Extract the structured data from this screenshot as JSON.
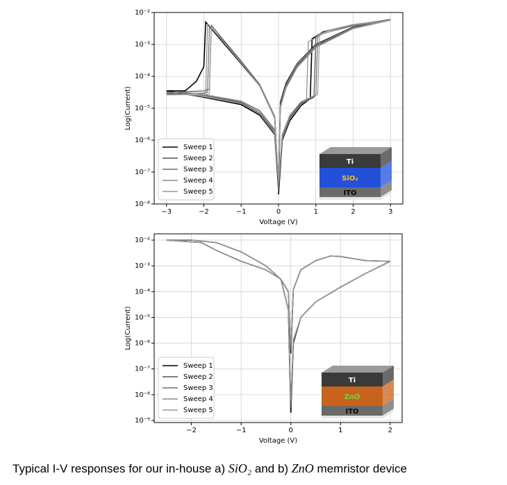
{
  "charts": [
    {
      "chart_data": {
        "type": "line",
        "x_label": "Voltage (V)",
        "y_label": "Log(Current)",
        "y_log": true,
        "grid": true,
        "legend": "lower left",
        "xlim": [
          -3.33,
          3.33
        ],
        "xticks": [
          {
            "value": -3,
            "label": "−3"
          },
          {
            "value": -2,
            "label": "−2"
          },
          {
            "value": -1,
            "label": "−1"
          },
          0,
          1,
          2,
          3
        ],
        "ylim": [
          1e-08,
          0.01
        ],
        "yticks": [
          {
            "value": 1e-08,
            "label": "10⁻⁸"
          },
          {
            "value": 1e-07,
            "label": "10⁻⁷"
          },
          {
            "value": 1e-06,
            "label": "10⁻⁶"
          },
          {
            "value": 1e-05,
            "label": "10⁻⁵"
          },
          {
            "value": 0.0001,
            "label": "10⁻⁴"
          },
          {
            "value": 0.001,
            "label": "10⁻³"
          },
          {
            "value": 0.01,
            "label": "10⁻²"
          }
        ],
        "series": [
          {
            "name": "Sweep 1",
            "color": "#000000",
            "x": [
              0,
              0.1,
              0.3,
              0.6,
              0.85,
              0.9,
              1.2,
              2,
              3,
              2,
              1,
              0.5,
              0.2,
              0.05,
              0,
              -0.1,
              -0.5,
              -1,
              -2,
              -3,
              -2.5,
              -2.2,
              -2,
              -1.95,
              -1.5,
              -1,
              -0.5,
              -0.1,
              0
            ],
            "values": [
              2e-08,
              1e-06,
              4e-06,
              1.2e-05,
              2e-05,
              0.0015,
              0.0025,
              0.004,
              0.006,
              0.0035,
              0.001,
              0.00025,
              6e-05,
              1.5e-05,
              3e-08,
              1.5e-06,
              6e-06,
              1.3e-05,
              2.2e-05,
              3.5e-05,
              3.5e-05,
              7e-05,
              0.0002,
              0.005,
              0.0012,
              0.00025,
              5e-05,
              5e-06,
              3e-08
            ]
          },
          {
            "name": "Sweep 2",
            "color": "#555555",
            "x": [
              0,
              0.1,
              0.3,
              0.6,
              0.95,
              1,
              1.3,
              2,
              3,
              2,
              1,
              0.5,
              0.2,
              0.05,
              0,
              -0.1,
              -0.5,
              -1,
              -2,
              -3,
              -2.5,
              -2,
              -1.85,
              -1.8,
              -1.5,
              -1,
              -0.5,
              -0.1,
              0
            ],
            "values": [
              3e-08,
              1.2e-06,
              5e-06,
              1.4e-05,
              2.2e-05,
              0.0018,
              0.0026,
              0.004,
              0.006,
              0.0033,
              0.0009,
              0.00022,
              5e-05,
              1.2e-05,
              4e-08,
              1.8e-06,
              7e-06,
              1.5e-05,
              2.5e-05,
              3e-05,
              3.3e-05,
              3.5e-05,
              4e-05,
              0.004,
              0.0015,
              0.0003,
              5.5e-05,
              5.5e-06,
              4e-08
            ]
          },
          {
            "name": "Sweep 3",
            "color": "#6e6e6e",
            "x": [
              0,
              0.1,
              0.3,
              0.6,
              1,
              1.05,
              1.3,
              2,
              3,
              2,
              1,
              0.5,
              0.2,
              0.05,
              0,
              -0.1,
              -0.5,
              -1,
              -2,
              -3,
              -2.5,
              -2,
              -1.9,
              -1.85,
              -1.5,
              -1,
              -0.5,
              -0.1,
              0
            ],
            "values": [
              4e-08,
              1.4e-06,
              5.5e-06,
              1.5e-05,
              2.5e-05,
              0.002,
              0.0027,
              0.0042,
              0.0058,
              0.0032,
              0.00085,
              0.0002,
              4.5e-05,
              1.1e-05,
              5e-08,
              2e-06,
              8e-06,
              1.6e-05,
              2.6e-05,
              2.8e-05,
              2.9e-05,
              3e-05,
              3.2e-05,
              0.0038,
              0.0014,
              0.00028,
              5e-05,
              5e-06,
              5e-08
            ]
          },
          {
            "name": "Sweep 4",
            "color": "#888888",
            "x": [
              0,
              0.1,
              0.3,
              0.6,
              0.75,
              0.8,
              1.2,
              2,
              3,
              2,
              1,
              0.5,
              0.2,
              0.05,
              0,
              -0.1,
              -0.5,
              -1,
              -2,
              -3,
              -2.5,
              -2,
              -1.95,
              -1.9,
              -1.5,
              -1,
              -0.5,
              -0.1,
              0
            ],
            "values": [
              3e-08,
              1.1e-06,
              4.5e-06,
              1.3e-05,
              1.8e-05,
              0.0012,
              0.0022,
              0.0038,
              0.0059,
              0.0034,
              0.00095,
              0.00024,
              5.5e-05,
              1.3e-05,
              4e-08,
              1.6e-06,
              6.5e-06,
              1.4e-05,
              2.3e-05,
              3.2e-05,
              3.1e-05,
              2.8e-05,
              3e-05,
              0.0045,
              0.0013,
              0.00026,
              5.2e-05,
              5.2e-06,
              4e-08
            ]
          },
          {
            "name": "Sweep 5",
            "color": "#999999",
            "x": [
              0,
              0.1,
              0.3,
              0.6,
              1.05,
              1.1,
              1.4,
              2,
              3,
              2,
              1,
              0.5,
              0.2,
              0.05,
              0,
              -0.1,
              -0.5,
              -1,
              -2,
              -3,
              -2.5,
              -2,
              -1.85,
              -1.8,
              -1.5,
              -1,
              -0.5,
              -0.1,
              0
            ],
            "values": [
              5e-08,
              1.5e-06,
              6e-06,
              1.6e-05,
              2.8e-05,
              0.0021,
              0.0028,
              0.0041,
              0.0057,
              0.0031,
              0.0008,
              0.00019,
              4.2e-05,
              1e-05,
              6e-08,
              2.2e-06,
              8.5e-06,
              1.7e-05,
              2.7e-05,
              2.6e-05,
              2.7e-05,
              2.6e-05,
              2.9e-05,
              0.0035,
              0.0013,
              0.00027,
              4.8e-05,
              4.8e-06,
              6e-08
            ]
          }
        ],
        "inset": {
          "labels": [
            "Ti",
            "SiO₂",
            "ITO"
          ],
          "colors": [
            "#3a3a3a",
            "#2350d8",
            "#6a6a6a"
          ],
          "label_colors": [
            "#ffffff",
            "#f5c518",
            "#000000"
          ]
        }
      }
    },
    {
      "chart_data": {
        "type": "line",
        "x_label": "Voltage (V)",
        "y_label": "Log(Current)",
        "y_log": true,
        "grid": true,
        "legend": "lower left",
        "xlim": [
          -2.75,
          2.24
        ],
        "xticks": [
          {
            "value": -2,
            "label": "−2"
          },
          {
            "value": -1,
            "label": "−1"
          },
          0,
          1,
          2
        ],
        "ylim": [
          8.3e-10,
          0.0175
        ],
        "yticks": [
          {
            "value": 1e-09,
            "label": "10⁻⁹"
          },
          {
            "value": 1e-08,
            "label": "10⁻⁸"
          },
          {
            "value": 1e-07,
            "label": "10⁻⁷"
          },
          {
            "value": 1e-06,
            "label": "10⁻⁶"
          },
          {
            "value": 1e-05,
            "label": "10⁻⁵"
          },
          {
            "value": 0.0001,
            "label": "10⁻⁴"
          },
          {
            "value": 0.001,
            "label": "10⁻³"
          },
          {
            "value": 0.01,
            "label": "10⁻²"
          }
        ],
        "series": [
          {
            "name": "Sweep 1",
            "color": "#000000",
            "x": [
              0,
              0.05,
              0.2,
              0.5,
              1,
              1.5,
              2,
              1.5,
              1,
              0.8,
              0.5,
              0.2,
              0.05,
              0,
              -0.05,
              -0.2,
              -0.5,
              -1,
              -1.5,
              -1.8,
              -2.5,
              -2,
              -1.5,
              -1,
              -0.5,
              -0.2,
              -0.05,
              0
            ],
            "values": [
              2e-09,
              1e-06,
              1e-05,
              4e-05,
              0.00015,
              0.0005,
              0.0015,
              0.0016,
              0.0023,
              0.0024,
              0.0016,
              0.0007,
              0.00012,
              4e-07,
              0.0001,
              0.0003,
              0.0007,
              0.0015,
              0.004,
              0.008,
              0.01,
              0.01,
              0.008,
              0.0035,
              0.001,
              0.0003,
              2e-05,
              2e-09
            ]
          },
          {
            "name": "Sweep 2",
            "color": "#555555",
            "x": [
              0,
              0.05,
              0.2,
              0.5,
              1,
              1.5,
              2,
              1.5,
              1,
              0.8,
              0.5,
              0.2,
              0.05,
              0,
              -0.05,
              -0.2,
              -0.5,
              -1,
              -1.5,
              -1.8,
              -2.5,
              -2,
              -1.5,
              -1,
              -0.5,
              -0.2,
              -0.05,
              0
            ],
            "values": [
              3e-09,
              1.1e-06,
              1e-05,
              4e-05,
              0.00015,
              0.0005,
              0.0015,
              0.0016,
              0.0023,
              0.0024,
              0.0016,
              0.0007,
              0.00012,
              5e-07,
              0.0001,
              0.0003,
              0.0007,
              0.0015,
              0.004,
              0.008,
              0.01,
              0.01,
              0.008,
              0.0035,
              0.001,
              0.0003,
              2e-05,
              3e-09
            ]
          },
          {
            "name": "Sweep 3",
            "color": "#6e6e6e",
            "x": [
              0,
              0.05,
              0.2,
              0.5,
              1,
              1.5,
              2,
              1.5,
              1,
              0.8,
              0.5,
              0.2,
              0.05,
              0,
              -0.05,
              -0.2,
              -0.5,
              -1,
              -1.5,
              -1.8,
              -2.5,
              -2,
              -1.5,
              -1,
              -0.5,
              -0.2,
              -0.05,
              0
            ],
            "values": [
              4e-09,
              1.2e-06,
              1e-05,
              4e-05,
              0.00015,
              0.0005,
              0.0015,
              0.0016,
              0.0023,
              0.0024,
              0.0016,
              0.0007,
              0.00012,
              6e-07,
              0.0001,
              0.0003,
              0.0007,
              0.0015,
              0.004,
              0.008,
              0.01,
              0.01,
              0.008,
              0.0035,
              0.001,
              0.0003,
              2e-05,
              4e-09
            ]
          },
          {
            "name": "Sweep 4",
            "color": "#888888",
            "x": [
              0,
              0.05,
              0.2,
              0.5,
              1,
              1.5,
              2,
              1.5,
              1,
              0.8,
              0.5,
              0.2,
              0.05,
              0,
              -0.05,
              -0.2,
              -0.5,
              -1,
              -1.5,
              -1.8,
              -2.5,
              -2,
              -1.5,
              -1,
              -0.5,
              -0.2,
              -0.05,
              0
            ],
            "values": [
              5e-09,
              1.3e-06,
              1e-05,
              4e-05,
              0.00015,
              0.0005,
              0.0015,
              0.0016,
              0.0023,
              0.0024,
              0.0016,
              0.0007,
              0.00012,
              7e-07,
              0.0001,
              0.0003,
              0.0007,
              0.0015,
              0.004,
              0.008,
              0.01,
              0.01,
              0.008,
              0.0035,
              0.001,
              0.0003,
              2e-05,
              5e-09
            ]
          },
          {
            "name": "Sweep 5",
            "color": "#999999",
            "x": [
              0,
              0.05,
              0.2,
              0.5,
              1,
              1.5,
              2,
              1.5,
              1,
              0.8,
              0.5,
              0.2,
              0.05,
              0,
              -0.05,
              -0.2,
              -0.5,
              -1,
              -1.5,
              -1.8,
              -2.5,
              -2,
              -1.5,
              -1,
              -0.5,
              -0.2,
              -0.05,
              0
            ],
            "values": [
              6e-09,
              1.4e-06,
              1e-05,
              4e-05,
              0.00015,
              0.0005,
              0.0015,
              0.0016,
              0.0023,
              0.0024,
              0.0016,
              0.0007,
              0.00012,
              8e-07,
              0.0001,
              0.0003,
              0.0007,
              0.0015,
              0.004,
              0.008,
              0.01,
              0.01,
              0.008,
              0.0035,
              0.001,
              0.0003,
              2e-05,
              6e-09
            ]
          }
        ],
        "inset": {
          "labels": [
            "Ti",
            "ZnO",
            "ITO"
          ],
          "colors": [
            "#3a3a3a",
            "#c8631e",
            "#6a6a6a"
          ],
          "label_colors": [
            "#ffffff",
            "#7fd13b",
            "#000000"
          ]
        }
      }
    }
  ],
  "caption": {
    "parts": [
      "Typical I-V responses for our in-house a) ",
      "SiO₂",
      " and b) ",
      "ZnO",
      " memristor device"
    ]
  }
}
